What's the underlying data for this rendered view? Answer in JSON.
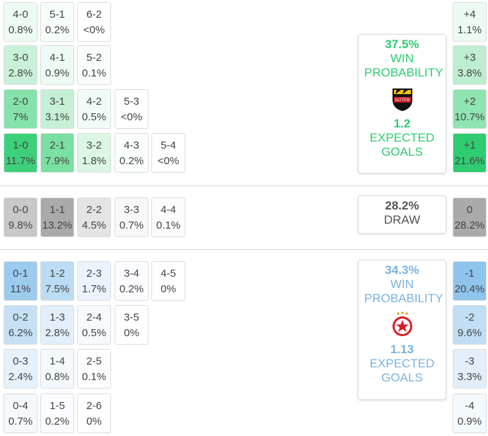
{
  "sections": [
    {
      "rows": [
        [
          {
            "score": "4-0",
            "prob": "0.8%",
            "color": "#eefbf3"
          },
          {
            "score": "5-1",
            "prob": "0.2%",
            "color": "#f7fdf9"
          },
          {
            "score": "6-2",
            "prob": "<0%",
            "color": "#ffffff"
          }
        ],
        [
          {
            "score": "3-0",
            "prob": "2.8%",
            "color": "#c9f1d9"
          },
          {
            "score": "4-1",
            "prob": "0.9%",
            "color": "#eefbf3"
          },
          {
            "score": "5-2",
            "prob": "0.1%",
            "color": "#fafefb"
          }
        ],
        [
          {
            "score": "2-0",
            "prob": "7%",
            "color": "#85e2ab"
          },
          {
            "score": "3-1",
            "prob": "3.1%",
            "color": "#c5f0d6"
          },
          {
            "score": "4-2",
            "prob": "0.5%",
            "color": "#f2fcf6"
          },
          {
            "score": "5-3",
            "prob": "<0%",
            "color": "#ffffff"
          }
        ],
        [
          {
            "score": "1-0",
            "prob": "11.7%",
            "color": "#3dd07a"
          },
          {
            "score": "2-1",
            "prob": "7.9%",
            "color": "#7adfa3"
          },
          {
            "score": "3-2",
            "prob": "1.8%",
            "color": "#dcf6e6"
          },
          {
            "score": "4-3",
            "prob": "0.2%",
            "color": "#fafefb"
          },
          {
            "score": "5-4",
            "prob": "<0%",
            "color": "#ffffff"
          }
        ]
      ],
      "diffs": [
        {
          "label": "+4",
          "prob": "1.1%",
          "color": "#ecfaf2"
        },
        {
          "label": "+3",
          "prob": "3.8%",
          "color": "#bdeed0"
        },
        {
          "label": "+2",
          "prob": "10.7%",
          "color": "#8fe4b2"
        },
        {
          "label": "+1",
          "prob": "21.6%",
          "color": "#2ecc71"
        }
      ],
      "summary": {
        "win_pct": "37.5%",
        "win_label": "WIN PROBABILITY",
        "xg": "1.2",
        "xg_label": "EXPECTED GOALS",
        "color": "#2ecc71"
      }
    },
    {
      "rows": [
        [
          {
            "score": "0-0",
            "prob": "9.8%",
            "color": "#c8c8c8"
          },
          {
            "score": "1-1",
            "prob": "13.2%",
            "color": "#aaaaaa"
          },
          {
            "score": "2-2",
            "prob": "4.5%",
            "color": "#e4e4e4"
          },
          {
            "score": "3-3",
            "prob": "0.7%",
            "color": "#f8f8f8"
          },
          {
            "score": "4-4",
            "prob": "0.1%",
            "color": "#fcfcfc"
          }
        ]
      ],
      "diffs": [
        {
          "label": "0",
          "prob": "28.2%",
          "color": "#aaaaaa"
        }
      ],
      "summary": {
        "draw_pct": "28.2%",
        "draw_label": "DRAW",
        "color": "#555555"
      }
    },
    {
      "rows": [
        [
          {
            "score": "0-1",
            "prob": "11%",
            "color": "#9ccbee"
          },
          {
            "score": "1-2",
            "prob": "7.5%",
            "color": "#bcdcf4"
          },
          {
            "score": "2-3",
            "prob": "1.7%",
            "color": "#ebf4fc"
          },
          {
            "score": "3-4",
            "prob": "0.2%",
            "color": "#fafcff"
          },
          {
            "score": "4-5",
            "prob": "0%",
            "color": "#ffffff"
          }
        ],
        [
          {
            "score": "0-2",
            "prob": "6.2%",
            "color": "#c6e1f5"
          },
          {
            "score": "1-3",
            "prob": "2.8%",
            "color": "#e2effa"
          },
          {
            "score": "2-4",
            "prob": "0.5%",
            "color": "#f6fafe"
          },
          {
            "score": "3-5",
            "prob": "0%",
            "color": "#ffffff"
          }
        ],
        [
          {
            "score": "0-3",
            "prob": "2.4%",
            "color": "#e5f1fb"
          },
          {
            "score": "1-4",
            "prob": "0.8%",
            "color": "#f4f9fe"
          },
          {
            "score": "2-5",
            "prob": "0.1%",
            "color": "#fcfdff"
          }
        ],
        [
          {
            "score": "0-4",
            "prob": "0.7%",
            "color": "#f4f9fe"
          },
          {
            "score": "1-5",
            "prob": "0.2%",
            "color": "#fafcff"
          },
          {
            "score": "2-6",
            "prob": "0%",
            "color": "#ffffff"
          }
        ]
      ],
      "diffs": [
        {
          "label": "-1",
          "prob": "20.4%",
          "color": "#8fc4ec"
        },
        {
          "label": "-2",
          "prob": "9.6%",
          "color": "#c0def4"
        },
        {
          "label": "-3",
          "prob": "3.3%",
          "color": "#e2effa"
        },
        {
          "label": "-4",
          "prob": "0.9%",
          "color": "#f4f9fe"
        }
      ],
      "summary": {
        "win_pct": "34.3%",
        "win_label": "WIN PROBABILITY",
        "xg": "1.13",
        "xg_label": "EXPECTED GOALS",
        "color": "#79b3dd"
      }
    }
  ]
}
